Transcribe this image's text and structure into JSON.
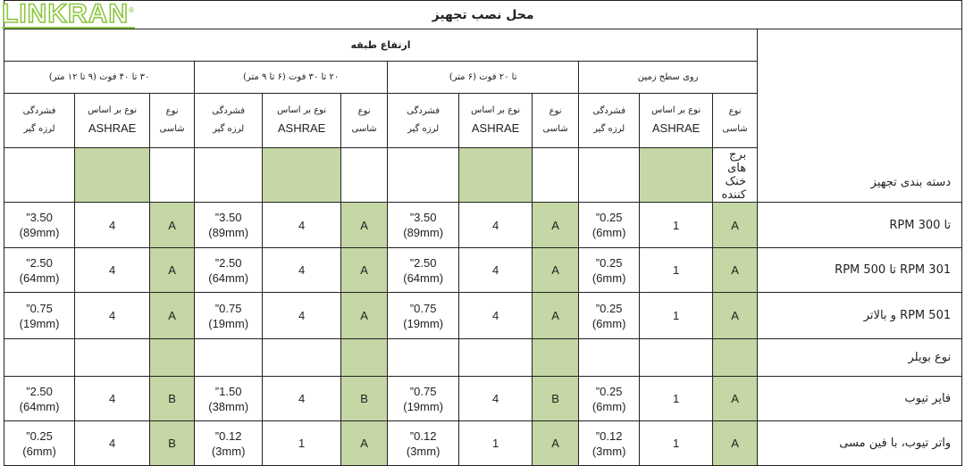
{
  "logo": "LINKRAN",
  "title": "محل نصب تجهیز",
  "floor_height": "ارتفاع طبقه",
  "category_header": "دسته بندی تجهیز",
  "groups": [
    "روی سطح زمین",
    "تا ۲۰ فوت (۶ متر)",
    "۲۰ تا ۳۰ فوت (۶ تا ۹ متر)",
    "۳۰ تا ۴۰ فوت (۹ تا ۱۲ متر)"
  ],
  "col_headers": {
    "chassis": "نوع شاسی",
    "ashrae_1": "نوع بر اساس",
    "ashrae_2": "ASHRAE",
    "thick_1": "فشردگی",
    "thick_2": "لرزه گیر"
  },
  "accent_green": "#c4d7a4",
  "rows": [
    {
      "category": "برج های خنک کننده",
      "section": true
    },
    {
      "category": "تا 300 RPM",
      "cells": [
        [
          "A",
          "1",
          "0.25”",
          "(6mm)"
        ],
        [
          "A",
          "4",
          "3.50”",
          "(89mm)"
        ],
        [
          "A",
          "4",
          "3.50”",
          "(89mm)"
        ],
        [
          "A",
          "4",
          "3.50”",
          "(89mm)"
        ]
      ]
    },
    {
      "category": "301 RPM تا 500 RPM",
      "cells": [
        [
          "A",
          "1",
          "0.25”",
          "(6mm)"
        ],
        [
          "A",
          "4",
          "2.50”",
          "(64mm)"
        ],
        [
          "A",
          "4",
          "2.50”",
          "(64mm)"
        ],
        [
          "A",
          "4",
          "2.50”",
          "(64mm)"
        ]
      ]
    },
    {
      "category": "501 RPM و بالاتر",
      "cells": [
        [
          "A",
          "1",
          "0.25”",
          "(6mm)"
        ],
        [
          "A",
          "4",
          "0.75”",
          "(19mm)"
        ],
        [
          "A",
          "4",
          "0.75”",
          "(19mm)"
        ],
        [
          "A",
          "4",
          "0.75”",
          "(19mm)"
        ]
      ]
    },
    {
      "category": "نوع بویلر",
      "section": true
    },
    {
      "category": "فایر تیوب",
      "cells": [
        [
          "A",
          "1",
          "0.25”",
          "(6mm)"
        ],
        [
          "B",
          "4",
          "0.75”",
          "(19mm)"
        ],
        [
          "B",
          "4",
          "1.50”",
          "(38mm)"
        ],
        [
          "B",
          "4",
          "2.50”",
          "(64mm)"
        ]
      ]
    },
    {
      "category": "واتر تیوب، با فین مسی",
      "cells": [
        [
          "A",
          "1",
          "0.12”",
          "(3mm)"
        ],
        [
          "A",
          "1",
          "0.12”",
          "(3mm)"
        ],
        [
          "A",
          "1",
          "0.12”",
          "(3mm)"
        ],
        [
          "B",
          "4",
          "0.25”",
          "(6mm)"
        ]
      ]
    }
  ]
}
